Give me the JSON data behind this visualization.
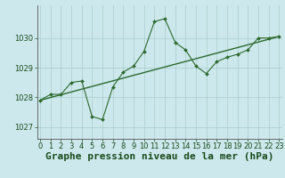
{
  "title": "Graphe pression niveau de la mer (hPa)",
  "background_color": "#cce8ec",
  "grid_color": "#aacccc",
  "line_color": "#2d6a2d",
  "x_values": [
    0,
    1,
    2,
    3,
    4,
    5,
    6,
    7,
    8,
    9,
    10,
    11,
    12,
    13,
    14,
    15,
    16,
    17,
    18,
    19,
    20,
    21,
    22,
    23
  ],
  "y_values": [
    1027.9,
    1028.1,
    1028.1,
    1028.5,
    1028.55,
    1027.35,
    1027.25,
    1028.35,
    1028.85,
    1029.05,
    1029.55,
    1030.55,
    1030.65,
    1029.85,
    1029.6,
    1029.05,
    1028.8,
    1029.2,
    1029.35,
    1029.45,
    1029.6,
    1030.0,
    1030.0,
    1030.05
  ],
  "trend_x": [
    0,
    23
  ],
  "trend_y": [
    1027.9,
    1030.05
  ],
  "xlim": [
    -0.3,
    23.3
  ],
  "ylim": [
    1026.6,
    1031.1
  ],
  "yticks": [
    1027,
    1028,
    1029,
    1030
  ],
  "xticks": [
    0,
    1,
    2,
    3,
    4,
    5,
    6,
    7,
    8,
    9,
    10,
    11,
    12,
    13,
    14,
    15,
    16,
    17,
    18,
    19,
    20,
    21,
    22,
    23
  ],
  "title_fontsize": 8,
  "tick_fontsize": 6,
  "axis_label_color": "#1a4a1a",
  "text_color": "#1a4a1a",
  "spine_color": "#555555"
}
